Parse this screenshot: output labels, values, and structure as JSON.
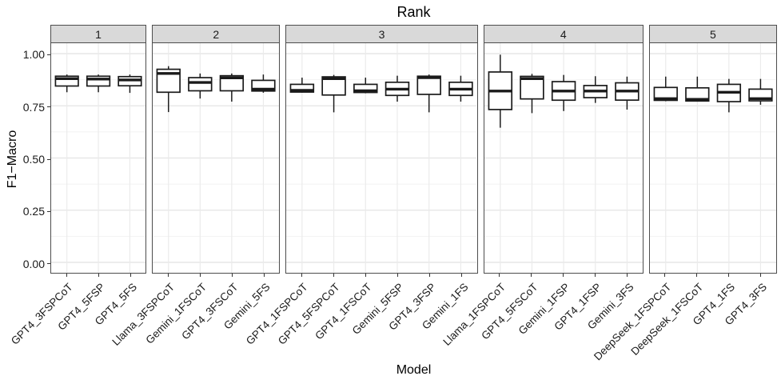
{
  "chart_data": {
    "type": "boxplot",
    "title": "Rank",
    "xlabel": "Model",
    "ylabel": "F1−Macro",
    "facet_variable": "Rank",
    "ylim": [
      -0.05,
      1.05
    ],
    "ytick_labels": [
      "0.00",
      "0.25",
      "0.50",
      "0.75",
      "1.00"
    ],
    "ytick_values": [
      0.0,
      0.25,
      0.5,
      0.75,
      1.0
    ],
    "minor_gridlines": [
      0.125,
      0.375,
      0.625,
      0.875
    ],
    "grid": true,
    "facets": [
      {
        "label": "1",
        "boxes": [
          {
            "model": "GPT4_3FSPCoT",
            "whislo": 0.815,
            "q1": 0.845,
            "med": 0.88,
            "q3": 0.892,
            "whishi": 0.9
          },
          {
            "model": "GPT4_5FSP",
            "whislo": 0.815,
            "q1": 0.845,
            "med": 0.878,
            "q3": 0.892,
            "whishi": 0.9
          },
          {
            "model": "GPT4_5FS",
            "whislo": 0.812,
            "q1": 0.846,
            "med": 0.874,
            "q3": 0.89,
            "whishi": 0.9
          }
        ]
      },
      {
        "label": "2",
        "boxes": [
          {
            "model": "Llama_3FSPCoT",
            "whislo": 0.72,
            "q1": 0.815,
            "med": 0.905,
            "q3": 0.925,
            "whishi": 0.94
          },
          {
            "model": "Gemini_1FSCoT",
            "whislo": 0.785,
            "q1": 0.822,
            "med": 0.862,
            "q3": 0.885,
            "whishi": 0.905
          },
          {
            "model": "GPT4_3FSCoT",
            "whislo": 0.77,
            "q1": 0.822,
            "med": 0.884,
            "q3": 0.894,
            "whishi": 0.905
          },
          {
            "model": "Gemini_5FS",
            "whislo": 0.813,
            "q1": 0.821,
            "med": 0.83,
            "q3": 0.872,
            "whishi": 0.9
          }
        ]
      },
      {
        "label": "3",
        "boxes": [
          {
            "model": "GPT4_1FSPCoT",
            "whislo": 0.813,
            "q1": 0.816,
            "med": 0.824,
            "q3": 0.853,
            "whishi": 0.885
          },
          {
            "model": "GPT4_5FSPCoT",
            "whislo": 0.719,
            "q1": 0.802,
            "med": 0.88,
            "q3": 0.889,
            "whishi": 0.898
          },
          {
            "model": "GPT4_1FSCoT",
            "whislo": 0.81,
            "q1": 0.814,
            "med": 0.822,
            "q3": 0.853,
            "whishi": 0.885
          },
          {
            "model": "Gemini_5FSP",
            "whislo": 0.77,
            "q1": 0.8,
            "med": 0.83,
            "q3": 0.863,
            "whishi": 0.894
          },
          {
            "model": "GPT4_3FSP",
            "whislo": 0.719,
            "q1": 0.805,
            "med": 0.885,
            "q3": 0.892,
            "whishi": 0.9
          },
          {
            "model": "Gemini_1FS",
            "whislo": 0.77,
            "q1": 0.8,
            "med": 0.83,
            "q3": 0.863,
            "whishi": 0.894
          }
        ]
      },
      {
        "label": "4",
        "boxes": [
          {
            "model": "Llama_1FSPCoT",
            "whislo": 0.645,
            "q1": 0.732,
            "med": 0.821,
            "q3": 0.912,
            "whishi": 0.995
          },
          {
            "model": "GPT4_5FSCoT",
            "whislo": 0.715,
            "q1": 0.783,
            "med": 0.88,
            "q3": 0.891,
            "whishi": 0.903
          },
          {
            "model": "Gemini_1FSP",
            "whislo": 0.725,
            "q1": 0.777,
            "med": 0.821,
            "q3": 0.866,
            "whishi": 0.898
          },
          {
            "model": "GPT4_1FSP",
            "whislo": 0.764,
            "q1": 0.789,
            "med": 0.821,
            "q3": 0.847,
            "whishi": 0.892
          },
          {
            "model": "Gemini_3FS",
            "whislo": 0.732,
            "q1": 0.777,
            "med": 0.821,
            "q3": 0.86,
            "whishi": 0.89
          }
        ]
      },
      {
        "label": "5",
        "boxes": [
          {
            "model": "DeepSeek_1FSPCoT",
            "whislo": 0.772,
            "q1": 0.776,
            "med": 0.784,
            "q3": 0.838,
            "whishi": 0.89
          },
          {
            "model": "DeepSeek_1FSCoT",
            "whislo": 0.77,
            "q1": 0.773,
            "med": 0.781,
            "q3": 0.836,
            "whishi": 0.89
          },
          {
            "model": "GPT4_1FS",
            "whislo": 0.719,
            "q1": 0.77,
            "med": 0.815,
            "q3": 0.853,
            "whishi": 0.879
          },
          {
            "model": "GPT4_3FS",
            "whislo": 0.755,
            "q1": 0.774,
            "med": 0.784,
            "q3": 0.83,
            "whishi": 0.879
          }
        ]
      }
    ]
  },
  "colors": {
    "strip_bg": "#d9d9d9",
    "panel_border": "#4d4d4d",
    "grid_major": "#e4e4e4",
    "grid_minor": "#f2f2f2",
    "grid_vertical": "#ebebeb",
    "box_stroke": "#1a1a1a",
    "box_fill": "#ffffff"
  }
}
